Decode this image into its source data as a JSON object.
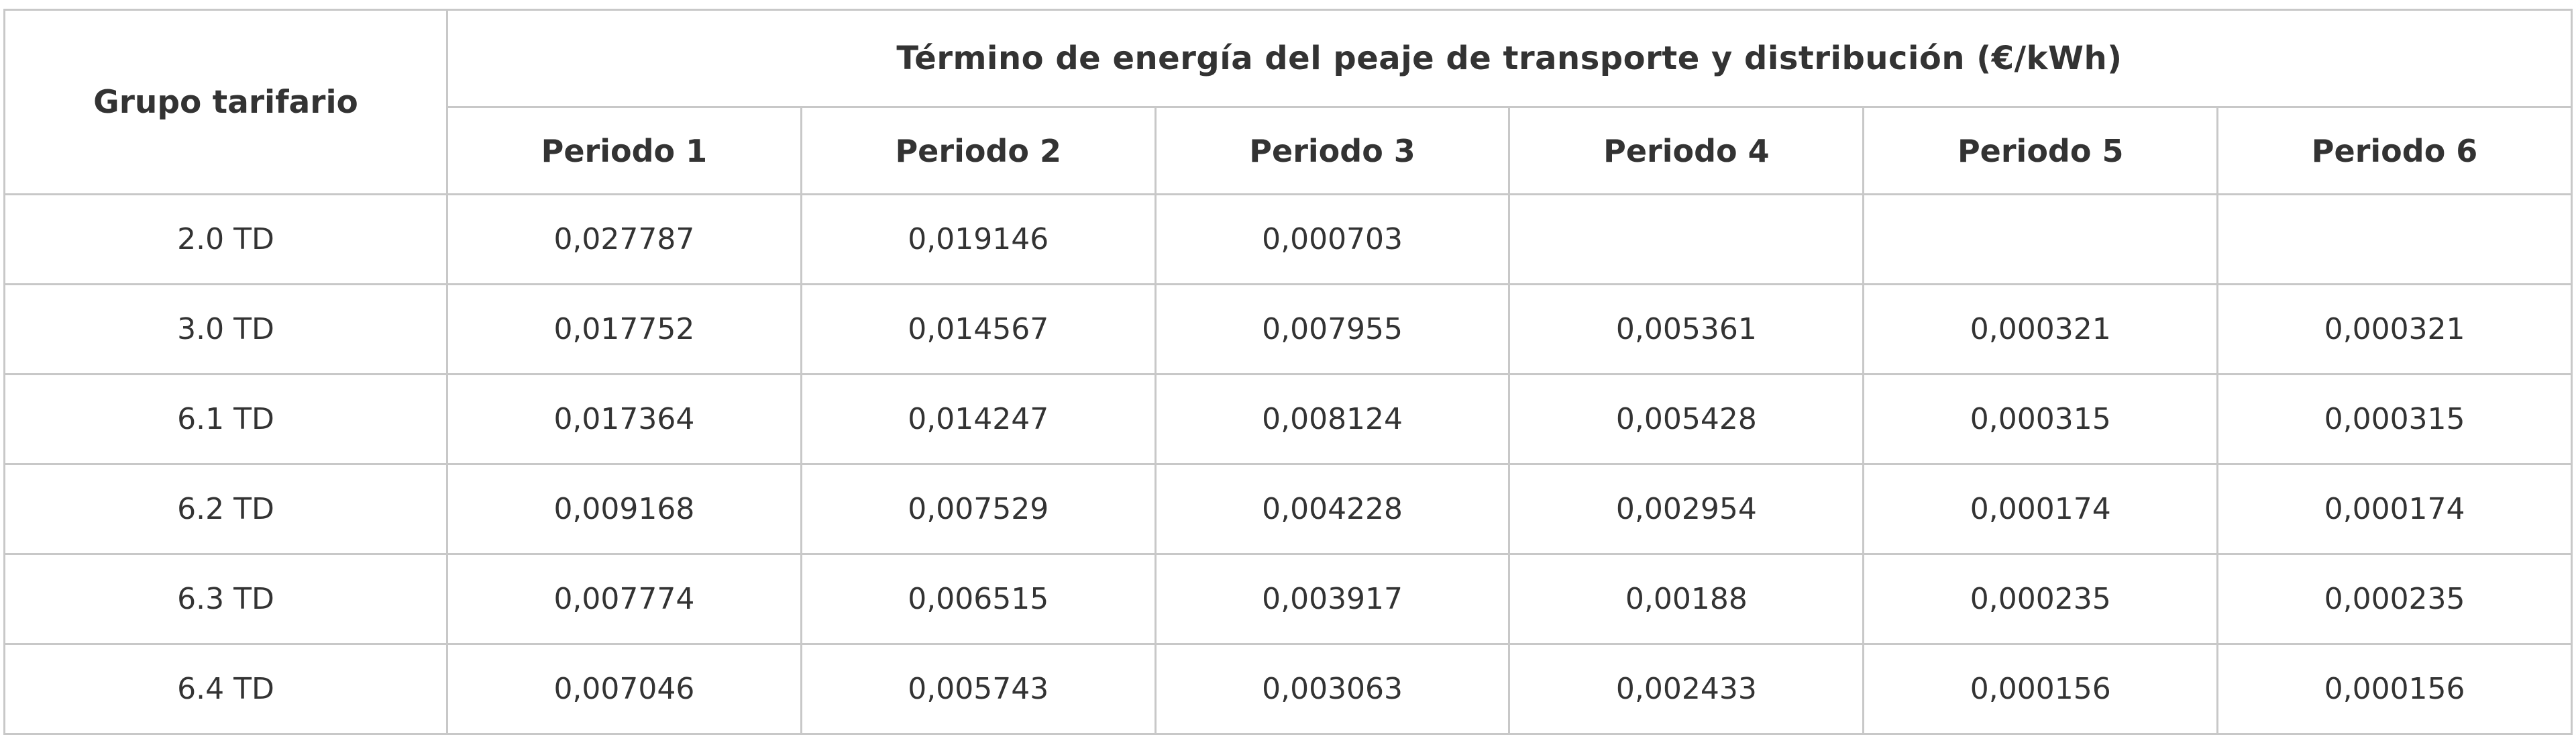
{
  "table": {
    "group_header": "Grupo tarifario",
    "energy_header": "Término de energía del peaje de transporte y distribución (€/kWh)",
    "period_headers": [
      "Periodo 1",
      "Periodo 2",
      "Periodo 3",
      "Periodo 4",
      "Periodo 5",
      "Periodo 6"
    ],
    "rows": [
      {
        "group": "2.0 TD",
        "values": [
          "0,027787",
          "0,019146",
          "0,000703",
          "",
          "",
          ""
        ]
      },
      {
        "group": "3.0 TD",
        "values": [
          "0,017752",
          "0,014567",
          "0,007955",
          "0,005361",
          "0,000321",
          "0,000321"
        ]
      },
      {
        "group": "6.1 TD",
        "values": [
          "0,017364",
          "0,014247",
          "0,008124",
          "0,005428",
          "0,000315",
          "0,000315"
        ]
      },
      {
        "group": "6.2 TD",
        "values": [
          "0,009168",
          "0,007529",
          "0,004228",
          "0,002954",
          "0,000174",
          "0,000174"
        ]
      },
      {
        "group": "6.3 TD",
        "values": [
          "0,007774",
          "0,006515",
          "0,003917",
          "0,00188",
          "0,000235",
          "0,000235"
        ]
      },
      {
        "group": "6.4 TD",
        "values": [
          "0,007046",
          "0,005743",
          "0,003063",
          "0,002433",
          "0,000156",
          "0,000156"
        ]
      }
    ],
    "colors": {
      "border": "#c8c8c8",
      "text": "#333333",
      "cell_background": "#ffffff"
    }
  },
  "chart_data": {
    "type": "table",
    "title": "Término de energía del peaje de transporte y distribución (€/kWh)",
    "row_header_label": "Grupo tarifario",
    "columns": [
      "Periodo 1",
      "Periodo 2",
      "Periodo 3",
      "Periodo 4",
      "Periodo 5",
      "Periodo 6"
    ],
    "series": [
      {
        "name": "2.0 TD",
        "values": [
          0.027787,
          0.019146,
          0.000703,
          null,
          null,
          null
        ]
      },
      {
        "name": "3.0 TD",
        "values": [
          0.017752,
          0.014567,
          0.007955,
          0.005361,
          0.000321,
          0.000321
        ]
      },
      {
        "name": "6.1 TD",
        "values": [
          0.017364,
          0.014247,
          0.008124,
          0.005428,
          0.000315,
          0.000315
        ]
      },
      {
        "name": "6.2 TD",
        "values": [
          0.009168,
          0.007529,
          0.004228,
          0.002954,
          0.000174,
          0.000174
        ]
      },
      {
        "name": "6.3 TD",
        "values": [
          0.007774,
          0.006515,
          0.003917,
          0.00188,
          0.000235,
          0.000235
        ]
      },
      {
        "name": "6.4 TD",
        "values": [
          0.007046,
          0.005743,
          0.003063,
          0.002433,
          0.000156,
          0.000156
        ]
      }
    ],
    "units": "€/kWh",
    "decimal_separator": ","
  }
}
